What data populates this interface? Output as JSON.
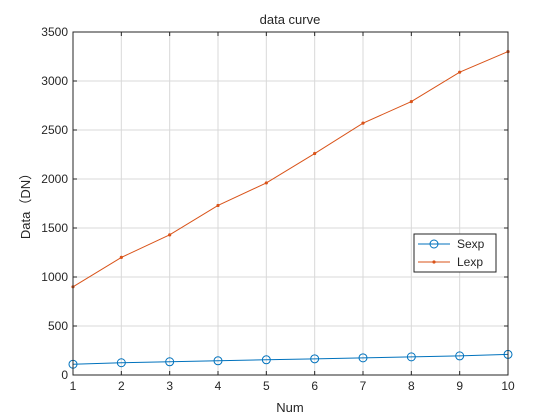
{
  "chart_data": {
    "type": "line",
    "title": "data curve",
    "xlabel": "Num",
    "ylabel": "Data（DN）",
    "xlim": [
      1,
      10
    ],
    "ylim": [
      0,
      3500
    ],
    "grid": true,
    "legend_position": "right-middle",
    "x_ticks": [
      "1",
      "2",
      "3",
      "4",
      "5",
      "6",
      "7",
      "8",
      "9",
      "10"
    ],
    "y_ticks": [
      "0",
      "500",
      "1000",
      "1500",
      "2000",
      "2500",
      "3000",
      "3500"
    ],
    "x": [
      1,
      2,
      3,
      4,
      5,
      6,
      7,
      8,
      9,
      10
    ],
    "series": [
      {
        "name": "Sexp",
        "color": "#0072BD",
        "marker": "circle",
        "values": [
          110,
          125,
          135,
          145,
          155,
          165,
          175,
          185,
          195,
          210
        ]
      },
      {
        "name": "Lexp",
        "color": "#D95319",
        "marker": "dot",
        "values": [
          900,
          1200,
          1430,
          1730,
          1960,
          2260,
          2570,
          2790,
          3090,
          3300
        ]
      }
    ]
  }
}
